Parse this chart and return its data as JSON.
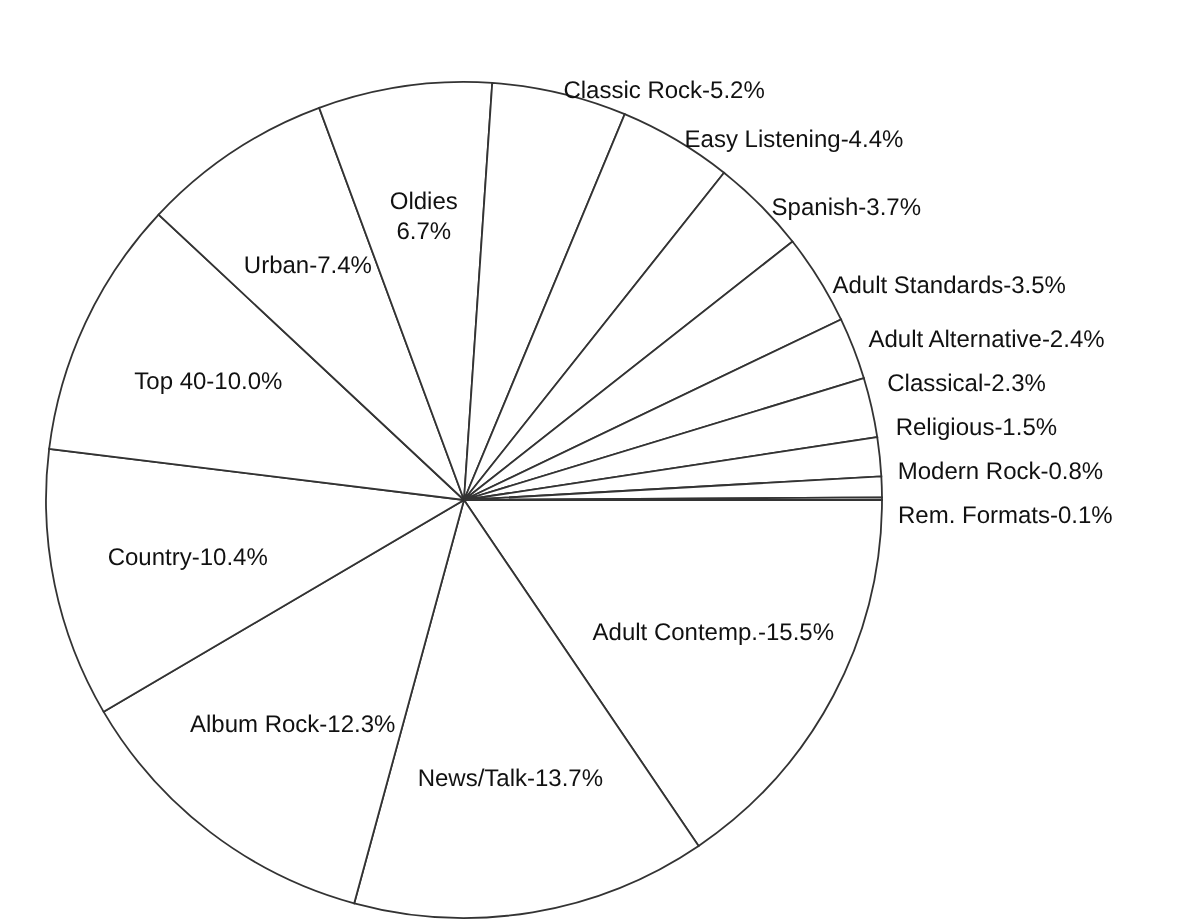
{
  "chart_data": {
    "type": "pie",
    "categories": [
      "Adult Contemp.",
      "News/Talk",
      "Album Rock",
      "Country",
      "Top 40",
      "Urban",
      "Oldies",
      "Classic Rock",
      "Easy Listening",
      "Spanish",
      "Adult Standards",
      "Adult Alternative",
      "Classical",
      "Religious",
      "Modern Rock",
      "Rem. Formats"
    ],
    "values": [
      15.5,
      13.7,
      12.3,
      10.4,
      10.0,
      7.4,
      6.7,
      5.2,
      4.4,
      3.7,
      3.5,
      2.4,
      2.3,
      1.5,
      0.8,
      0.1
    ],
    "value_labels": [
      "15.5%",
      "13.7%",
      "12.3%",
      "10.4%",
      "10.0%",
      "7.4%",
      "6.7%",
      "5.2%",
      "4.4%",
      "3.7%",
      "3.5%",
      "2.4%",
      "2.3%",
      "1.5%",
      "0.8%",
      "0.1%"
    ],
    "colors": [
      "#ffffff",
      "#ffffff",
      "#ffffff",
      "#ffffff",
      "#ffffff",
      "#ffffff",
      "#ffffff",
      "#ffffff",
      "#ffffff",
      "#ffffff",
      "#ffffff",
      "#ffffff",
      "#ffffff",
      "#ffffff",
      "#ffffff",
      "#ffffff"
    ]
  }
}
